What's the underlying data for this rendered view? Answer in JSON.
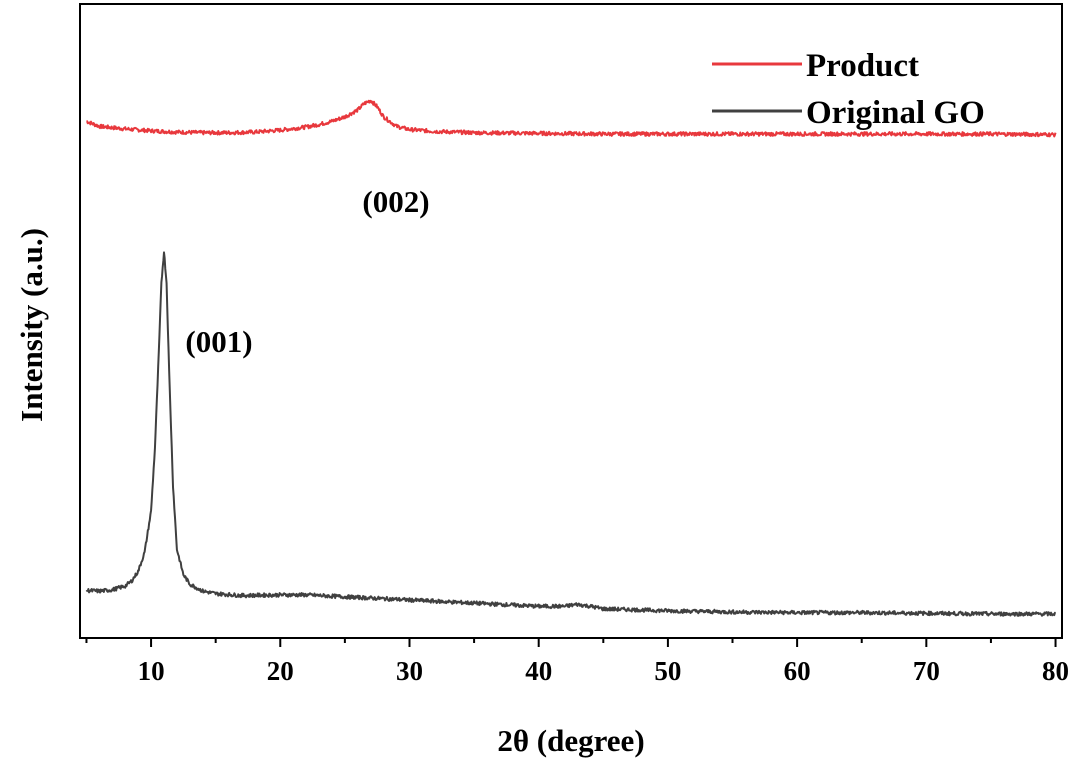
{
  "chart_data": {
    "type": "line",
    "xlabel": "2θ (degree)",
    "ylabel": "Intensity (a.u.)",
    "xlim": [
      4.5,
      80.5
    ],
    "xticks": [
      10,
      20,
      30,
      40,
      50,
      60,
      70,
      80
    ],
    "yticks_shown": false,
    "grid": false,
    "legend": {
      "placement": "top-right"
    },
    "series": [
      {
        "name": "Product",
        "color": "#e8383d",
        "x": [
          5,
          6,
          8,
          10,
          12,
          14,
          16,
          18,
          20,
          22,
          23,
          24,
          25,
          26,
          26.5,
          27,
          27.5,
          28,
          29,
          30,
          32,
          35,
          40,
          45,
          50,
          55,
          60,
          65,
          70,
          75,
          80
        ],
        "y": [
          0.815,
          0.807,
          0.803,
          0.8,
          0.798,
          0.797,
          0.797,
          0.798,
          0.801,
          0.806,
          0.81,
          0.815,
          0.822,
          0.833,
          0.843,
          0.848,
          0.838,
          0.822,
          0.807,
          0.802,
          0.799,
          0.797,
          0.796,
          0.795,
          0.795,
          0.795,
          0.795,
          0.795,
          0.795,
          0.795,
          0.794
        ]
      },
      {
        "name": "Original GO",
        "color": "#404040",
        "x": [
          5,
          6,
          7,
          8,
          8.5,
          9,
          9.5,
          10,
          10.3,
          10.6,
          10.8,
          11,
          11.2,
          11.4,
          11.7,
          12,
          12.5,
          13,
          14,
          15,
          17,
          20,
          22,
          25,
          30,
          35,
          40,
          42,
          43,
          44,
          45,
          50,
          55,
          60,
          65,
          70,
          75,
          80
        ],
        "y": [
          0.075,
          0.074,
          0.076,
          0.082,
          0.09,
          0.105,
          0.135,
          0.2,
          0.3,
          0.45,
          0.56,
          0.61,
          0.56,
          0.42,
          0.24,
          0.14,
          0.1,
          0.085,
          0.074,
          0.07,
          0.067,
          0.068,
          0.068,
          0.065,
          0.06,
          0.055,
          0.05,
          0.05,
          0.053,
          0.05,
          0.046,
          0.043,
          0.041,
          0.04,
          0.04,
          0.039,
          0.038,
          0.038
        ]
      }
    ],
    "annotations": [
      {
        "text": "(002)",
        "x": 27
      },
      {
        "text": "(001)",
        "x": 11
      }
    ]
  }
}
